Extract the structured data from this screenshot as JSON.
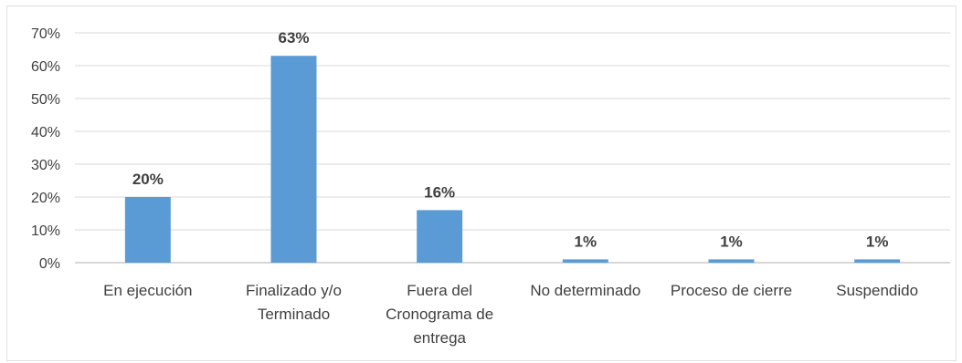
{
  "chart_data": {
    "type": "bar",
    "categories": [
      [
        "En ejecución"
      ],
      [
        "Finalizado y/o",
        "Terminado"
      ],
      [
        "Fuera del",
        "Cronograma de",
        "entrega"
      ],
      [
        "No determinado"
      ],
      [
        "Proceso de cierre"
      ],
      [
        "Suspendido"
      ]
    ],
    "values": [
      20,
      63,
      16,
      1,
      1,
      1
    ],
    "data_labels": [
      "20%",
      "63%",
      "16%",
      "1%",
      "1%",
      "1%"
    ],
    "ylim": [
      0,
      70
    ],
    "yticks": [
      0,
      10,
      20,
      30,
      40,
      50,
      60,
      70
    ],
    "ytick_labels": [
      "0%",
      "10%",
      "20%",
      "30%",
      "40%",
      "50%",
      "60%",
      "70%"
    ],
    "gridlines": true,
    "bar_color": "#5B9BD5",
    "grid_color": "#D9D9D9",
    "axis_color": "#BFBFBF"
  }
}
